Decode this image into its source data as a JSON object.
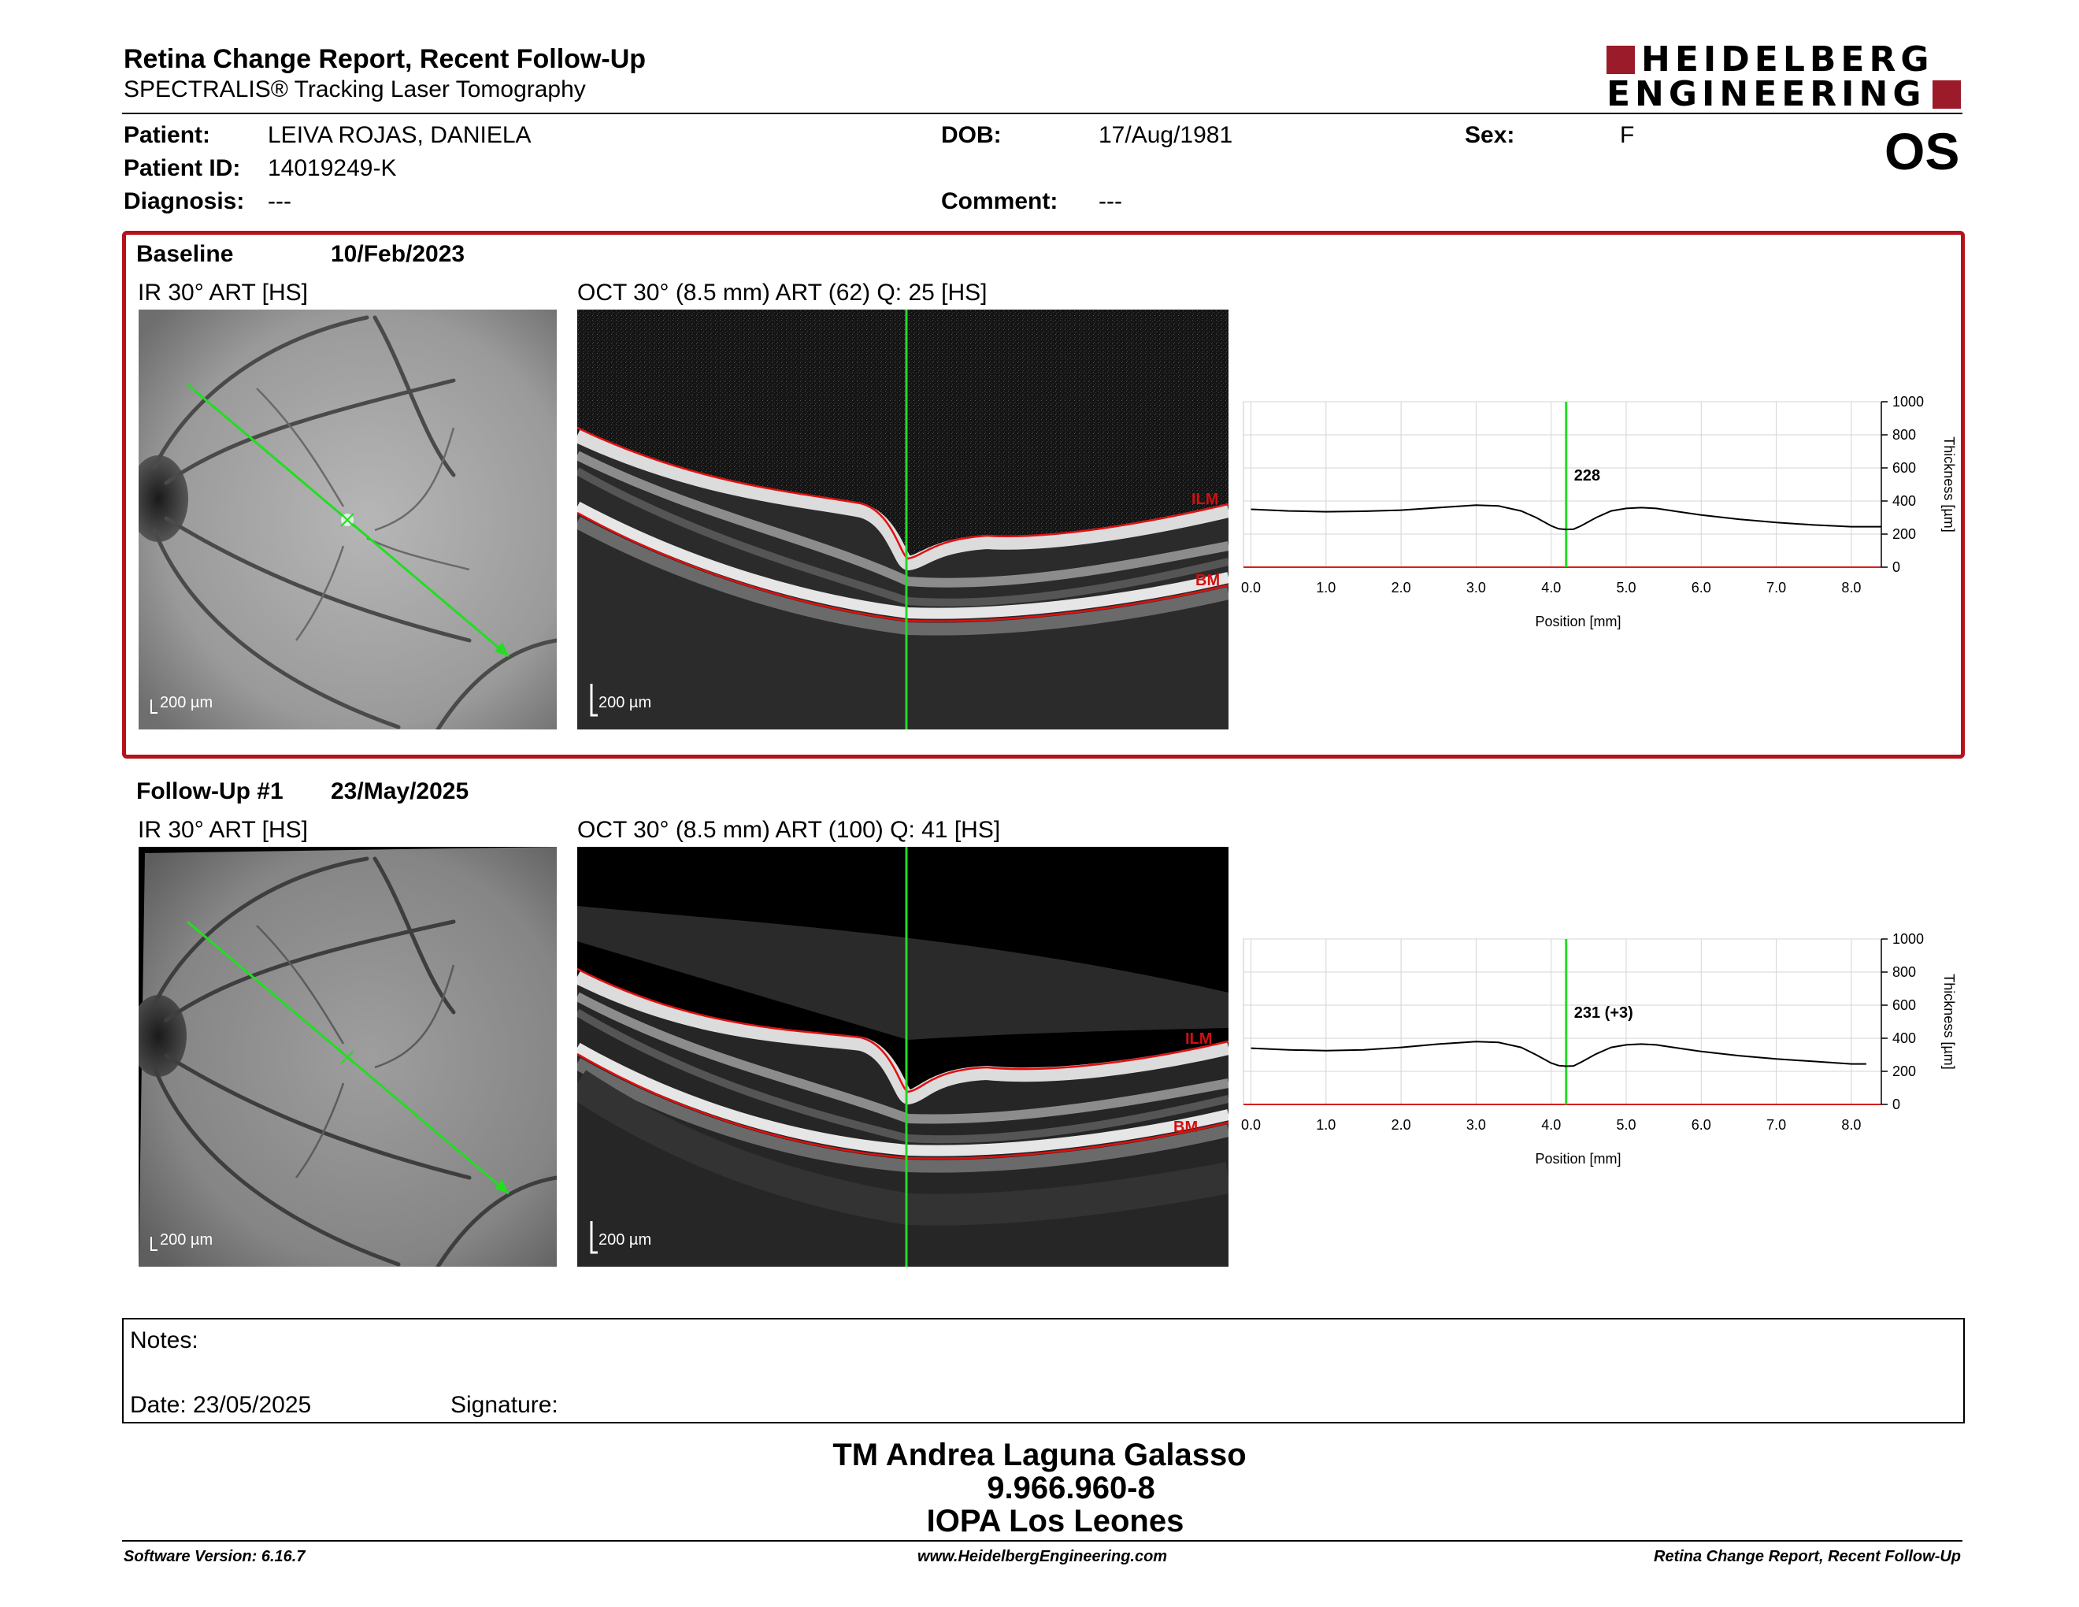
{
  "header": {
    "title": "Retina Change Report, Recent Follow-Up",
    "subtitle": "SPECTRALIS® Tracking Laser Tomography",
    "logo_line1": "HEIDELBERG",
    "logo_line2": "ENGINEERING",
    "eye": "OS"
  },
  "patient": {
    "patient_label": "Patient:",
    "patient_value": "LEIVA ROJAS, DANIELA",
    "id_label": "Patient ID:",
    "id_value": "14019249-K",
    "diagnosis_label": "Diagnosis:",
    "diagnosis_value": "---",
    "dob_label": "DOB:",
    "dob_value": "17/Aug/1981",
    "comment_label": "Comment:",
    "comment_value": "---",
    "sex_label": "Sex:",
    "sex_value": "F"
  },
  "baseline": {
    "label": "Baseline",
    "date": "10/Feb/2023",
    "ir_caption": "IR 30° ART [HS]",
    "oct_caption": "OCT 30° (8.5 mm) ART (62) Q: 25 [HS]",
    "ir_scale": "200 µm",
    "oct_scale": "200 µm",
    "ilm": "ILM",
    "bm": "BM"
  },
  "followup": {
    "label": "Follow-Up #1",
    "date": "23/May/2025",
    "ir_caption": "IR 30° ART [HS]",
    "oct_caption": "OCT 30° (8.5 mm) ART (100) Q: 41 [HS]",
    "ir_scale": "200 µm",
    "oct_scale": "200 µm",
    "ilm": "ILM",
    "bm": "BM"
  },
  "chart_data": [
    {
      "type": "line",
      "xlabel": "Position [mm]",
      "ylabel": "Thickness [µm]",
      "xlim": [
        -0.1,
        8.4
      ],
      "ylim": [
        0,
        1000
      ],
      "xticks": [
        "0.0",
        "1.0",
        "2.0",
        "3.0",
        "4.0",
        "5.0",
        "6.0",
        "7.0",
        "8.0"
      ],
      "yticks": [
        "0",
        "200",
        "400",
        "600",
        "800",
        "1000"
      ],
      "marker_x": 4.2,
      "marker_label": "228",
      "x": [
        0,
        0.5,
        1.0,
        1.5,
        2.0,
        2.5,
        3.0,
        3.3,
        3.6,
        3.8,
        4.0,
        4.1,
        4.2,
        4.3,
        4.4,
        4.6,
        4.8,
        5.0,
        5.2,
        5.4,
        5.7,
        6.0,
        6.5,
        7.0,
        7.5,
        8.0,
        8.4
      ],
      "y": [
        350,
        340,
        335,
        338,
        345,
        360,
        375,
        370,
        340,
        300,
        250,
        232,
        228,
        230,
        250,
        300,
        340,
        355,
        360,
        355,
        335,
        315,
        290,
        270,
        255,
        245,
        245
      ]
    },
    {
      "type": "line",
      "xlabel": "Position [mm]",
      "ylabel": "Thickness [µm]",
      "xlim": [
        -0.1,
        8.4
      ],
      "ylim": [
        0,
        1000
      ],
      "xticks": [
        "0.0",
        "1.0",
        "2.0",
        "3.0",
        "4.0",
        "5.0",
        "6.0",
        "7.0",
        "8.0"
      ],
      "yticks": [
        "0",
        "200",
        "400",
        "600",
        "800",
        "1000"
      ],
      "marker_x": 4.2,
      "marker_label": "231 (+3)",
      "x": [
        0,
        0.5,
        1.0,
        1.5,
        2.0,
        2.5,
        3.0,
        3.3,
        3.6,
        3.8,
        4.0,
        4.1,
        4.2,
        4.3,
        4.4,
        4.6,
        4.8,
        5.0,
        5.2,
        5.4,
        5.7,
        6.0,
        6.5,
        7.0,
        7.5,
        8.0,
        8.2
      ],
      "y": [
        340,
        330,
        325,
        330,
        345,
        365,
        380,
        375,
        345,
        300,
        250,
        235,
        231,
        233,
        255,
        305,
        345,
        360,
        365,
        360,
        340,
        320,
        295,
        275,
        260,
        245,
        245
      ]
    }
  ],
  "notes": {
    "notes_label": "Notes:",
    "date_label": "Date: 23/05/2025",
    "signature_label": "Signature:"
  },
  "signatory": {
    "name": "TM Andrea Laguna Galasso",
    "id": "9.966.960-8",
    "place": "IOPA Los Leones"
  },
  "footer": {
    "version": "Software Version: 6.16.7",
    "url": "www.HeidelbergEngineering.com",
    "report": "Retina Change Report, Recent Follow-Up"
  },
  "colors": {
    "accent": "#b5121b",
    "logo": "#9b1b2a",
    "scan_line": "#22dd22",
    "layer_line": "#e01010"
  }
}
